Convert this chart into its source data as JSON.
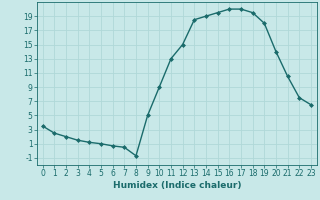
{
  "x": [
    0,
    1,
    2,
    3,
    4,
    5,
    6,
    7,
    8,
    9,
    10,
    11,
    12,
    13,
    14,
    15,
    16,
    17,
    18,
    19,
    20,
    21,
    22,
    23
  ],
  "y": [
    3.5,
    2.5,
    2.0,
    1.5,
    1.2,
    1.0,
    0.7,
    0.5,
    -0.7,
    5.0,
    9.0,
    13.0,
    15.0,
    18.5,
    19.0,
    19.5,
    20.0,
    20.0,
    19.5,
    18.0,
    14.0,
    10.5,
    7.5,
    6.5
  ],
  "line_color": "#1a6b6b",
  "marker": "D",
  "marker_size": 2.0,
  "bg_color": "#c8e8e8",
  "grid_color": "#b0d8d8",
  "xlabel": "Humidex (Indice chaleur)",
  "ylim": [
    -2,
    21
  ],
  "xlim": [
    -0.5,
    23.5
  ],
  "yticks": [
    -1,
    1,
    3,
    5,
    7,
    9,
    11,
    13,
    15,
    17,
    19
  ],
  "xticks": [
    0,
    1,
    2,
    3,
    4,
    5,
    6,
    7,
    8,
    9,
    10,
    11,
    12,
    13,
    14,
    15,
    16,
    17,
    18,
    19,
    20,
    21,
    22,
    23
  ],
  "xlabel_fontsize": 6.5,
  "tick_fontsize": 5.5,
  "linewidth": 1.0
}
